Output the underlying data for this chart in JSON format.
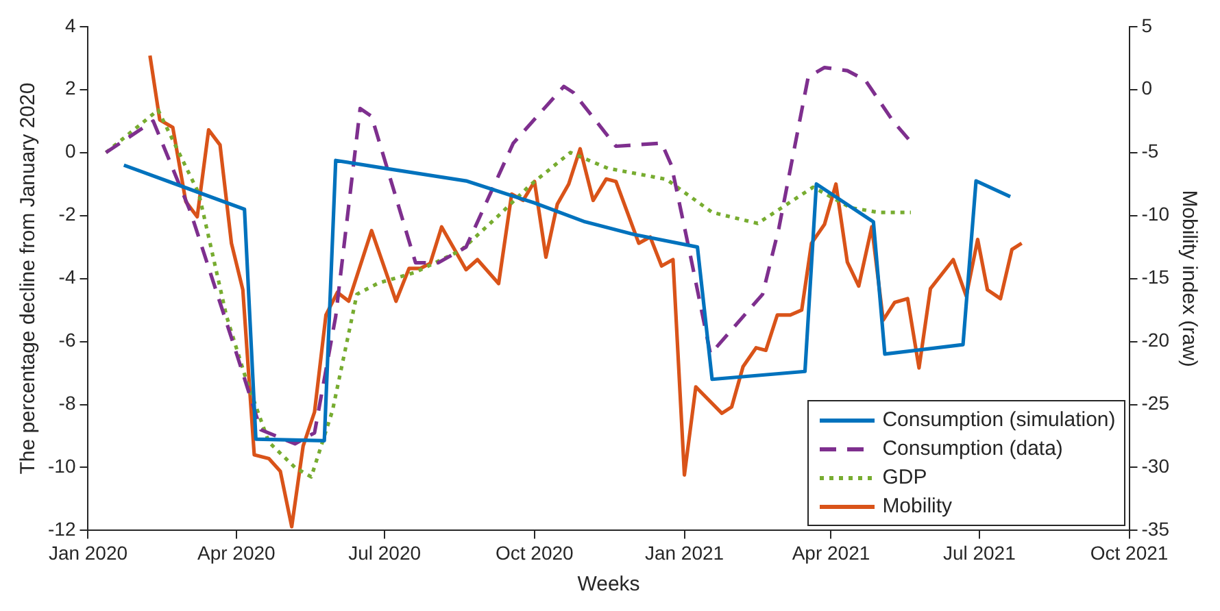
{
  "chart_data": {
    "type": "line",
    "xlabel": "Weeks",
    "ylabel": "The percentage decline from January 2020",
    "y2label": "Mobility index (raw)",
    "xlim": [
      "2020-01-01",
      "2021-10-01"
    ],
    "xticks": [
      {
        "value": "2020-01-01",
        "label": "Jan 2020"
      },
      {
        "value": "2020-04-01",
        "label": "Apr 2020"
      },
      {
        "value": "2020-07-01",
        "label": "Jul 2020"
      },
      {
        "value": "2020-10-01",
        "label": "Oct 2020"
      },
      {
        "value": "2021-01-01",
        "label": "Jan 2021"
      },
      {
        "value": "2021-04-01",
        "label": "Apr 2021"
      },
      {
        "value": "2021-07-01",
        "label": "Jul 2021"
      },
      {
        "value": "2021-10-01",
        "label": "Oct 2021"
      }
    ],
    "ylim": [
      -12,
      4
    ],
    "yticks": [
      -12,
      -10,
      -8,
      -6,
      -4,
      -2,
      0,
      2,
      4
    ],
    "y2lim": [
      -35,
      5
    ],
    "y2ticks": [
      -35,
      -30,
      -25,
      -20,
      -15,
      -10,
      -5,
      0,
      5
    ],
    "grid": false,
    "legend": "bottom right",
    "marker": "none",
    "series": [
      {
        "name": "Consumption (simulation)",
        "color": "#0072bd",
        "line_style": "solid",
        "x": [
          "2020-01-23",
          "2020-04-06",
          "2020-04-13",
          "2020-05-25",
          "2020-06-01",
          "2020-07-01",
          "2020-08-20",
          "2020-10-01",
          "2020-11-01",
          "2020-12-01",
          "2021-01-09",
          "2021-01-18",
          "2021-03-16",
          "2021-03-23",
          "2021-04-27",
          "2021-05-04",
          "2021-06-21",
          "2021-06-29",
          "2021-07-20"
        ],
        "values": [
          -0.4,
          -1.8,
          -9.1,
          -9.15,
          -0.25,
          -0.5,
          -0.9,
          -1.6,
          -2.2,
          -2.6,
          -3.0,
          -7.2,
          -6.95,
          -1.0,
          -2.2,
          -6.4,
          -6.1,
          -0.9,
          -1.4
        ]
      },
      {
        "name": "Consumption (data)",
        "color": "#7e2f8e",
        "line_style": "dashed",
        "x": [
          "2020-01-12",
          "2020-02-10",
          "2020-03-04",
          "2020-03-31",
          "2020-04-16",
          "2020-05-07",
          "2020-05-19",
          "2020-06-01",
          "2020-06-16",
          "2020-06-23",
          "2020-07-09",
          "2020-07-20",
          "2020-08-03",
          "2020-08-20",
          "2020-09-18",
          "2020-10-19",
          "2020-10-25",
          "2020-11-20",
          "2020-12-18",
          "2020-12-24",
          "2021-01-04",
          "2021-01-17",
          "2021-02-18",
          "2021-02-28",
          "2021-03-18",
          "2021-03-28",
          "2021-04-11",
          "2021-04-22",
          "2021-05-09",
          "2021-05-19"
        ],
        "values": [
          0,
          1.0,
          -1.9,
          -6.2,
          -8.8,
          -9.25,
          -8.9,
          -5.2,
          1.4,
          1.15,
          -1.6,
          -3.5,
          -3.5,
          -3.0,
          0.3,
          2.1,
          1.9,
          0.2,
          0.3,
          -0.4,
          -3.1,
          -6.4,
          -4.5,
          -2.4,
          2.4,
          2.7,
          2.6,
          2.3,
          1.0,
          0.4
        ]
      },
      {
        "name": "GDP",
        "color": "#77ac30",
        "line_style": "dotted",
        "x": [
          "2020-01-12",
          "2020-02-13",
          "2020-03-09",
          "2020-03-26",
          "2020-04-07",
          "2020-04-21",
          "2020-05-07",
          "2020-05-17",
          "2020-05-30",
          "2020-06-14",
          "2020-06-27",
          "2020-07-20",
          "2020-08-17",
          "2020-09-09",
          "2020-09-28",
          "2020-10-23",
          "2020-11-15",
          "2020-12-21",
          "2021-01-18",
          "2021-02-15",
          "2021-03-21",
          "2021-04-13",
          "2021-04-30",
          "2021-05-20"
        ],
        "values": [
          0,
          1.35,
          -1.3,
          -5.2,
          -7.2,
          -9.2,
          -10.0,
          -10.3,
          -8.2,
          -4.5,
          -4.15,
          -3.8,
          -3.1,
          -2.0,
          -1.05,
          0,
          -0.5,
          -0.85,
          -1.9,
          -2.25,
          -1.1,
          -1.75,
          -1.9,
          -1.9
        ]
      },
      {
        "name": "Mobility",
        "color": "#d95319",
        "line_style": "solid",
        "axis": "y2",
        "x": [
          "2020-02-08",
          "2020-02-14",
          "2020-02-22",
          "2020-03-01",
          "2020-03-08",
          "2020-03-15",
          "2020-03-22",
          "2020-03-29",
          "2020-04-05",
          "2020-04-12",
          "2020-04-21",
          "2020-04-28",
          "2020-05-05",
          "2020-05-12",
          "2020-05-19",
          "2020-05-26",
          "2020-06-02",
          "2020-06-09",
          "2020-06-23",
          "2020-07-08",
          "2020-07-16",
          "2020-07-23",
          "2020-07-29",
          "2020-08-05",
          "2020-08-20",
          "2020-08-27",
          "2020-09-09",
          "2020-09-17",
          "2020-09-24",
          "2020-10-01",
          "2020-10-08",
          "2020-10-15",
          "2020-10-22",
          "2020-10-29",
          "2020-11-06",
          "2020-11-14",
          "2020-11-20",
          "2020-12-04",
          "2020-12-11",
          "2020-12-18",
          "2020-12-25",
          "2021-01-01",
          "2021-01-08",
          "2021-01-24",
          "2021-01-30",
          "2021-02-06",
          "2021-02-14",
          "2021-02-20",
          "2021-02-27",
          "2021-03-07",
          "2021-03-14",
          "2021-03-20",
          "2021-03-28",
          "2021-04-04",
          "2021-04-11",
          "2021-04-18",
          "2021-04-26",
          "2021-05-03",
          "2021-05-10",
          "2021-05-18",
          "2021-05-25",
          "2021-06-01",
          "2021-06-15",
          "2021-06-23",
          "2021-06-30",
          "2021-07-06",
          "2021-07-14",
          "2021-07-21",
          "2021-07-27"
        ],
        "values": [
          2.7,
          -2.4,
          -3.0,
          -8.9,
          -10.1,
          -3.2,
          -4.4,
          -12.2,
          -15.9,
          -29.0,
          -29.3,
          -30.3,
          -34.7,
          -28.3,
          -25.6,
          -17.9,
          -16.1,
          -16.8,
          -11.2,
          -16.8,
          -14.2,
          -14.2,
          -13.8,
          -10.9,
          -14.3,
          -13.5,
          -15.4,
          -8.3,
          -8.8,
          -7.3,
          -13.3,
          -9.1,
          -7.5,
          -4.7,
          -8.8,
          -7.1,
          -7.3,
          -12.2,
          -11.7,
          -14.0,
          -13.5,
          -30.6,
          -23.6,
          -25.7,
          -25.2,
          -22.0,
          -20.5,
          -20.7,
          -17.9,
          -17.9,
          -17.5,
          -12.2,
          -10.7,
          -7.5,
          -13.7,
          -15.6,
          -10.9,
          -18.3,
          -16.9,
          -16.6,
          -22.1,
          -15.8,
          -13.5,
          -16.4,
          -11.9,
          -15.9,
          -16.6,
          -12.7,
          -12.2
        ]
      }
    ]
  }
}
